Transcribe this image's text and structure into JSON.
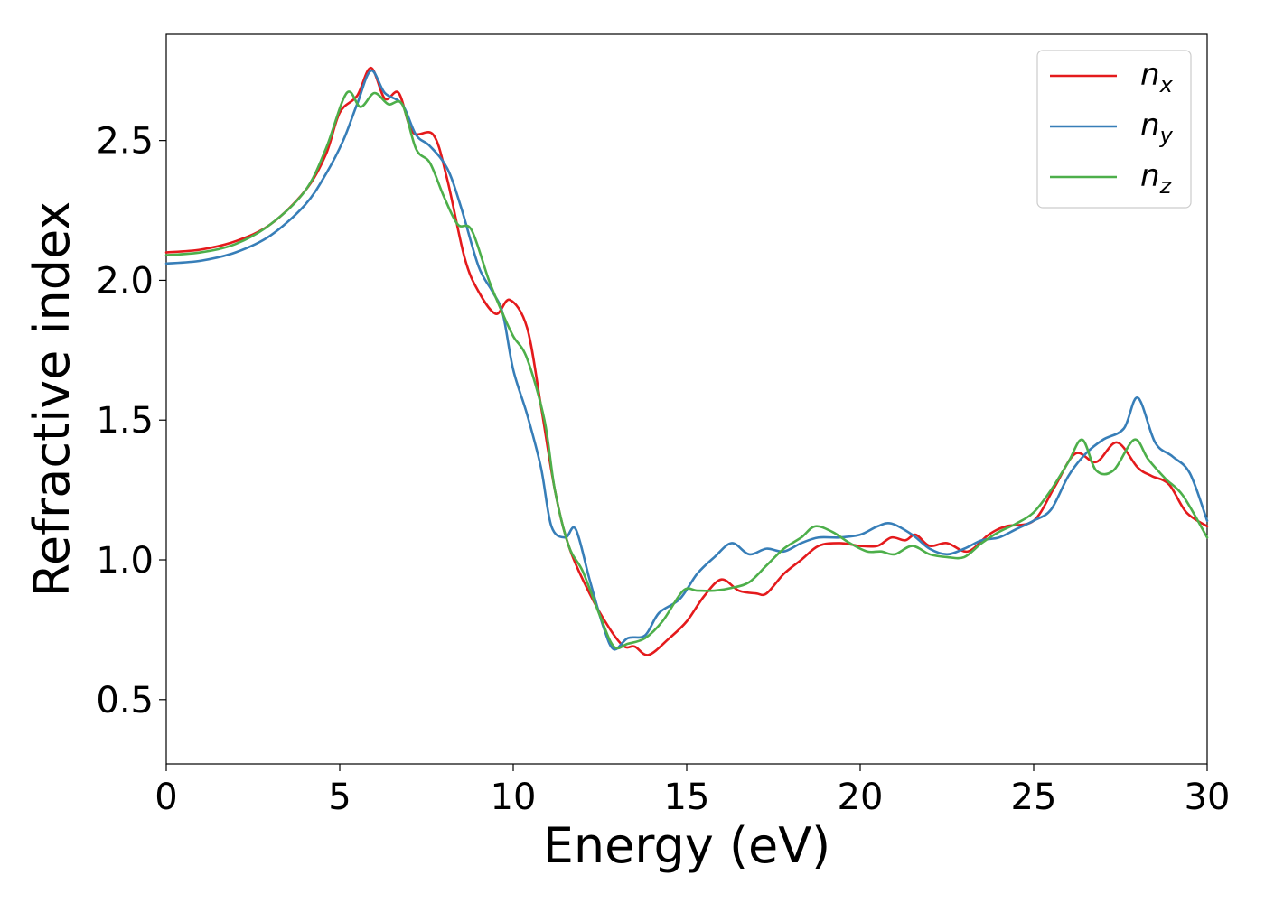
{
  "chart_data": {
    "type": "line",
    "xlabel": "Energy (eV)",
    "ylabel": "Refractive index",
    "xlim": [
      0,
      30
    ],
    "ylim": [
      0.27,
      2.88
    ],
    "xticks": [
      0,
      5,
      10,
      15,
      20,
      25,
      30
    ],
    "xtick_labels": [
      "0",
      "5",
      "10",
      "15",
      "20",
      "25",
      "30"
    ],
    "yticks": [
      0.5,
      1.0,
      1.5,
      2.0,
      2.5
    ],
    "ytick_labels": [
      "0.5",
      "1.0",
      "1.5",
      "2.0",
      "2.5"
    ],
    "grid": false,
    "legend_position": "top-right",
    "series": [
      {
        "name": "n",
        "subscript": "x",
        "color": "#e41a1c",
        "points": [
          [
            0,
            2.1
          ],
          [
            1,
            2.11
          ],
          [
            2,
            2.14
          ],
          [
            3,
            2.2
          ],
          [
            4,
            2.32
          ],
          [
            4.6,
            2.45
          ],
          [
            5,
            2.6
          ],
          [
            5.5,
            2.66
          ],
          [
            5.9,
            2.76
          ],
          [
            6.3,
            2.65
          ],
          [
            6.7,
            2.67
          ],
          [
            7.1,
            2.53
          ],
          [
            7.7,
            2.52
          ],
          [
            8.1,
            2.36
          ],
          [
            8.6,
            2.08
          ],
          [
            9,
            1.96
          ],
          [
            9.5,
            1.88
          ],
          [
            9.9,
            1.93
          ],
          [
            10.4,
            1.83
          ],
          [
            10.8,
            1.55
          ],
          [
            11.2,
            1.25
          ],
          [
            11.6,
            1.05
          ],
          [
            12.2,
            0.88
          ],
          [
            12.8,
            0.75
          ],
          [
            13.2,
            0.69
          ],
          [
            13.5,
            0.69
          ],
          [
            13.9,
            0.66
          ],
          [
            14.5,
            0.72
          ],
          [
            15,
            0.78
          ],
          [
            15.5,
            0.87
          ],
          [
            16,
            0.93
          ],
          [
            16.5,
            0.89
          ],
          [
            17,
            0.88
          ],
          [
            17.3,
            0.88
          ],
          [
            17.8,
            0.95
          ],
          [
            18.3,
            1.0
          ],
          [
            18.8,
            1.05
          ],
          [
            19.4,
            1.06
          ],
          [
            20,
            1.05
          ],
          [
            20.5,
            1.05
          ],
          [
            20.9,
            1.08
          ],
          [
            21.3,
            1.07
          ],
          [
            21.6,
            1.09
          ],
          [
            22,
            1.05
          ],
          [
            22.5,
            1.06
          ],
          [
            23.1,
            1.03
          ],
          [
            23.7,
            1.09
          ],
          [
            24.2,
            1.12
          ],
          [
            25,
            1.14
          ],
          [
            25.6,
            1.26
          ],
          [
            26.2,
            1.38
          ],
          [
            26.8,
            1.35
          ],
          [
            27.4,
            1.42
          ],
          [
            28,
            1.33
          ],
          [
            28.4,
            1.3
          ],
          [
            28.9,
            1.27
          ],
          [
            29.4,
            1.17
          ],
          [
            30,
            1.12
          ]
        ]
      },
      {
        "name": "n",
        "subscript": "y",
        "color": "#377eb8",
        "points": [
          [
            0,
            2.06
          ],
          [
            1,
            2.07
          ],
          [
            2,
            2.1
          ],
          [
            3,
            2.16
          ],
          [
            4,
            2.27
          ],
          [
            4.6,
            2.38
          ],
          [
            5.1,
            2.5
          ],
          [
            5.5,
            2.63
          ],
          [
            5.9,
            2.75
          ],
          [
            6.3,
            2.67
          ],
          [
            6.8,
            2.63
          ],
          [
            7.2,
            2.52
          ],
          [
            7.6,
            2.48
          ],
          [
            8.1,
            2.4
          ],
          [
            8.5,
            2.26
          ],
          [
            9,
            2.05
          ],
          [
            9.4,
            1.96
          ],
          [
            9.7,
            1.88
          ],
          [
            10,
            1.68
          ],
          [
            10.4,
            1.52
          ],
          [
            10.8,
            1.33
          ],
          [
            11.1,
            1.12
          ],
          [
            11.5,
            1.08
          ],
          [
            11.8,
            1.11
          ],
          [
            12.2,
            0.93
          ],
          [
            12.6,
            0.76
          ],
          [
            12.9,
            0.68
          ],
          [
            13.3,
            0.72
          ],
          [
            13.8,
            0.73
          ],
          [
            14.2,
            0.81
          ],
          [
            14.8,
            0.86
          ],
          [
            15.3,
            0.95
          ],
          [
            15.8,
            1.01
          ],
          [
            16.3,
            1.06
          ],
          [
            16.8,
            1.02
          ],
          [
            17.3,
            1.04
          ],
          [
            17.8,
            1.03
          ],
          [
            18.3,
            1.06
          ],
          [
            18.8,
            1.08
          ],
          [
            19.4,
            1.08
          ],
          [
            20,
            1.09
          ],
          [
            20.5,
            1.12
          ],
          [
            20.9,
            1.13
          ],
          [
            21.5,
            1.09
          ],
          [
            22,
            1.04
          ],
          [
            22.5,
            1.02
          ],
          [
            23,
            1.04
          ],
          [
            23.5,
            1.07
          ],
          [
            24,
            1.08
          ],
          [
            24.5,
            1.11
          ],
          [
            25,
            1.14
          ],
          [
            25.5,
            1.18
          ],
          [
            26,
            1.3
          ],
          [
            26.5,
            1.38
          ],
          [
            27,
            1.43
          ],
          [
            27.6,
            1.47
          ],
          [
            28,
            1.58
          ],
          [
            28.5,
            1.42
          ],
          [
            29,
            1.37
          ],
          [
            29.5,
            1.31
          ],
          [
            30,
            1.14
          ]
        ]
      },
      {
        "name": "n",
        "subscript": "z",
        "color": "#4daf4a",
        "points": [
          [
            0,
            2.09
          ],
          [
            1,
            2.1
          ],
          [
            2,
            2.13
          ],
          [
            3,
            2.2
          ],
          [
            4,
            2.32
          ],
          [
            4.6,
            2.47
          ],
          [
            5.2,
            2.67
          ],
          [
            5.6,
            2.62
          ],
          [
            6,
            2.67
          ],
          [
            6.4,
            2.63
          ],
          [
            6.8,
            2.63
          ],
          [
            7.2,
            2.47
          ],
          [
            7.6,
            2.42
          ],
          [
            8,
            2.3
          ],
          [
            8.4,
            2.2
          ],
          [
            8.8,
            2.18
          ],
          [
            9.3,
            2.0
          ],
          [
            9.7,
            1.88
          ],
          [
            10,
            1.8
          ],
          [
            10.4,
            1.72
          ],
          [
            10.9,
            1.5
          ],
          [
            11.2,
            1.25
          ],
          [
            11.6,
            1.05
          ],
          [
            12,
            0.96
          ],
          [
            12.5,
            0.8
          ],
          [
            12.9,
            0.69
          ],
          [
            13.3,
            0.7
          ],
          [
            13.8,
            0.72
          ],
          [
            14.3,
            0.78
          ],
          [
            14.9,
            0.89
          ],
          [
            15.3,
            0.89
          ],
          [
            15.8,
            0.89
          ],
          [
            16.3,
            0.9
          ],
          [
            16.8,
            0.92
          ],
          [
            17.3,
            0.98
          ],
          [
            17.8,
            1.04
          ],
          [
            18.3,
            1.08
          ],
          [
            18.7,
            1.12
          ],
          [
            19.2,
            1.1
          ],
          [
            19.7,
            1.06
          ],
          [
            20.2,
            1.03
          ],
          [
            20.6,
            1.03
          ],
          [
            21,
            1.02
          ],
          [
            21.5,
            1.05
          ],
          [
            22,
            1.02
          ],
          [
            22.5,
            1.01
          ],
          [
            23,
            1.01
          ],
          [
            23.5,
            1.06
          ],
          [
            24,
            1.1
          ],
          [
            24.5,
            1.13
          ],
          [
            25,
            1.17
          ],
          [
            25.5,
            1.25
          ],
          [
            26,
            1.35
          ],
          [
            26.4,
            1.43
          ],
          [
            26.8,
            1.32
          ],
          [
            27.3,
            1.32
          ],
          [
            27.9,
            1.43
          ],
          [
            28.3,
            1.36
          ],
          [
            28.8,
            1.29
          ],
          [
            29.3,
            1.23
          ],
          [
            30,
            1.08
          ]
        ]
      }
    ]
  }
}
